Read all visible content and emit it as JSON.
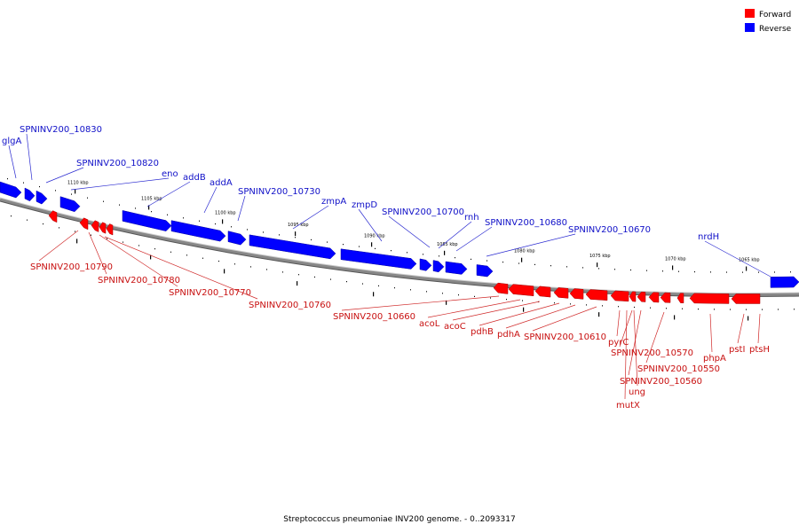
{
  "legend": {
    "forward": {
      "label": "Forward",
      "color": "#ff0000"
    },
    "reverse": {
      "label": "Reverse",
      "color": "#0000ff"
    }
  },
  "caption": "Streptococcus pneumoniae INV200 genome. - 0..2093317",
  "scale_labels": [
    "1110 kbp",
    "1105 kbp",
    "1100 kbp",
    "1095 kbp",
    "1090 kbp",
    "1085 kbp",
    "1080 kbp",
    "1075 kbp",
    "1070 kbp",
    "1065 kbp"
  ],
  "reverse_genes": [
    "glgA",
    "SPNINV200_10830",
    "SPNINV200_10820",
    "eno",
    "addB",
    "addA",
    "SPNINV200_10730",
    "zmpA",
    "zmpD",
    "SPNINV200_10700",
    "rnh",
    "SPNINV200_10680",
    "SPNINV200_10670",
    "nrdH"
  ],
  "forward_genes": [
    "SPNINV200_10790",
    "SPNINV200_10780",
    "SPNINV200_10770",
    "SPNINV200_10760",
    "SPNINV200_10660",
    "acoL",
    "acoC",
    "pdhB",
    "pdhA",
    "SPNINV200_10610",
    "pyrC",
    "SPNINV200_10570",
    "SPNINV200_10550",
    "SPNINV200_10560",
    "ung",
    "mutX",
    "phpA",
    "pstI",
    "ptsH"
  ]
}
